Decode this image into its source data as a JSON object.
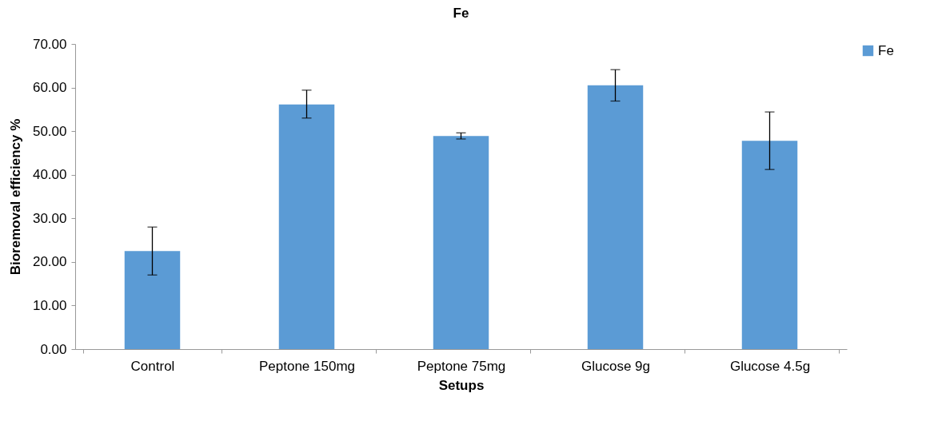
{
  "chart_data": {
    "type": "bar",
    "title": "Fe",
    "xlabel": "Setups",
    "ylabel": "Bioremoval efficiency %",
    "categories": [
      "Control",
      "Peptone 150mg",
      "Peptone 75mg",
      "Glucose 9g",
      "Glucose 4.5g"
    ],
    "series": [
      {
        "name": "Fe",
        "color": "#5b9bd5",
        "values": [
          22.5,
          56.1,
          48.9,
          60.5,
          47.8
        ],
        "errors": [
          [
            17.0,
            28.0
          ],
          [
            53.0,
            59.4
          ],
          [
            48.2,
            49.6
          ],
          [
            56.9,
            64.1
          ],
          [
            41.2,
            54.4
          ]
        ]
      }
    ],
    "ylim": [
      0,
      70
    ],
    "yticks": [
      {
        "value": 0,
        "label": "0.00"
      },
      {
        "value": 10,
        "label": "10.00"
      },
      {
        "value": 20,
        "label": "20.00"
      },
      {
        "value": 30,
        "label": "30.00"
      },
      {
        "value": 40,
        "label": "40.00"
      },
      {
        "value": 50,
        "label": "50.00"
      },
      {
        "value": 60,
        "label": "60.00"
      },
      {
        "value": 70,
        "label": "70.00"
      }
    ],
    "grid": false,
    "legend": "right"
  }
}
